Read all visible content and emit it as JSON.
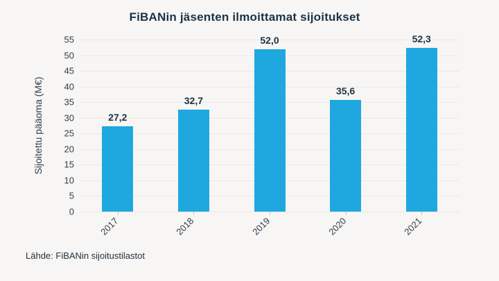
{
  "title": "FiBANin jäsenten ilmoittamat sijoitukset",
  "y_axis_title": "Sijoitettu pääoma (M€)",
  "source_note": "Lähde: FiBANin sijoitustilastot",
  "chart_data": {
    "type": "bar",
    "title": "FiBANin jäsenten ilmoittamat sijoitukset",
    "xlabel": "",
    "ylabel": "Sijoitettu pääoma (M€)",
    "categories": [
      "2017",
      "2018",
      "2019",
      "2020",
      "2021"
    ],
    "values": [
      27.2,
      32.7,
      52.0,
      35.6,
      52.3
    ],
    "value_labels": [
      "27,2",
      "32,7",
      "52,0",
      "35,6",
      "52,3"
    ],
    "ylim": [
      0,
      55
    ],
    "yticks": [
      0,
      5,
      10,
      15,
      20,
      25,
      30,
      35,
      40,
      45,
      50,
      55
    ],
    "grid": true,
    "legend": "none",
    "bar_color": "#1fa8e0",
    "source": "Lähde: FiBANin sijoitustilastot"
  },
  "colors": {
    "background": "#f7f6f4",
    "title_text": "#1d3245",
    "axis_text": "#2e3d4d",
    "value_label_text": "#1d3245",
    "gridline": "#eae9e6",
    "tick": "#c4c4c4",
    "bar": "#1fa8e0"
  }
}
